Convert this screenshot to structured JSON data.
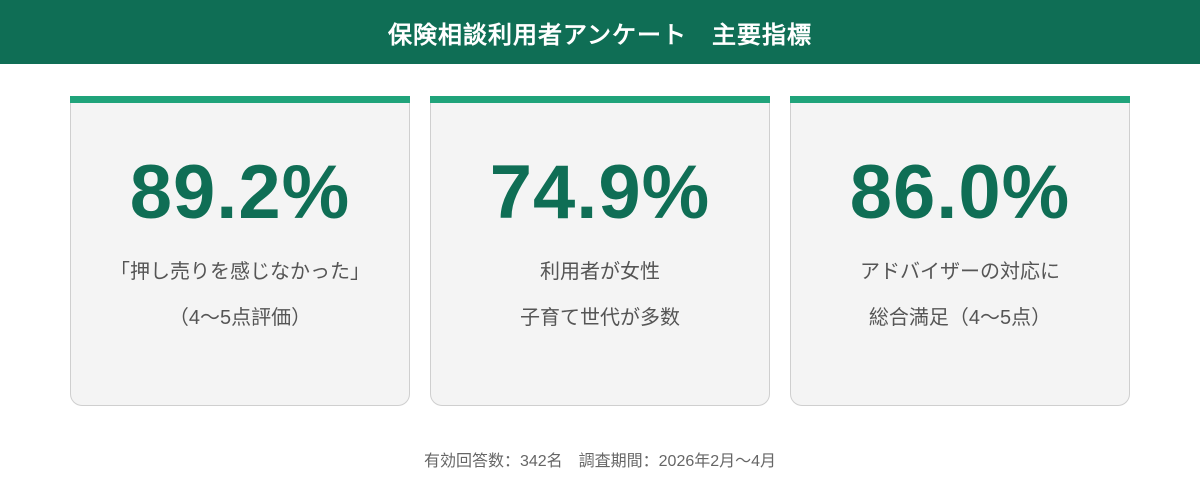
{
  "header": {
    "title": "保険相談利用者アンケート　主要指標"
  },
  "colors": {
    "header_bg": "#0f6e55",
    "accent_bar": "#1fa37a",
    "value_text": "#0f6e55"
  },
  "cards": [
    {
      "value": "89.2%",
      "line1": "「押し売りを感じなかった」",
      "line2": "（4〜5点評価）"
    },
    {
      "value": "74.9%",
      "line1": "利用者が女性",
      "line2": "子育て世代が多数"
    },
    {
      "value": "86.0%",
      "line1": "アドバイザーの対応に",
      "line2": "総合満足（4〜5点）"
    }
  ],
  "footer": {
    "text": "有効回答数：342名　調査期間：2026年2月〜4月"
  }
}
